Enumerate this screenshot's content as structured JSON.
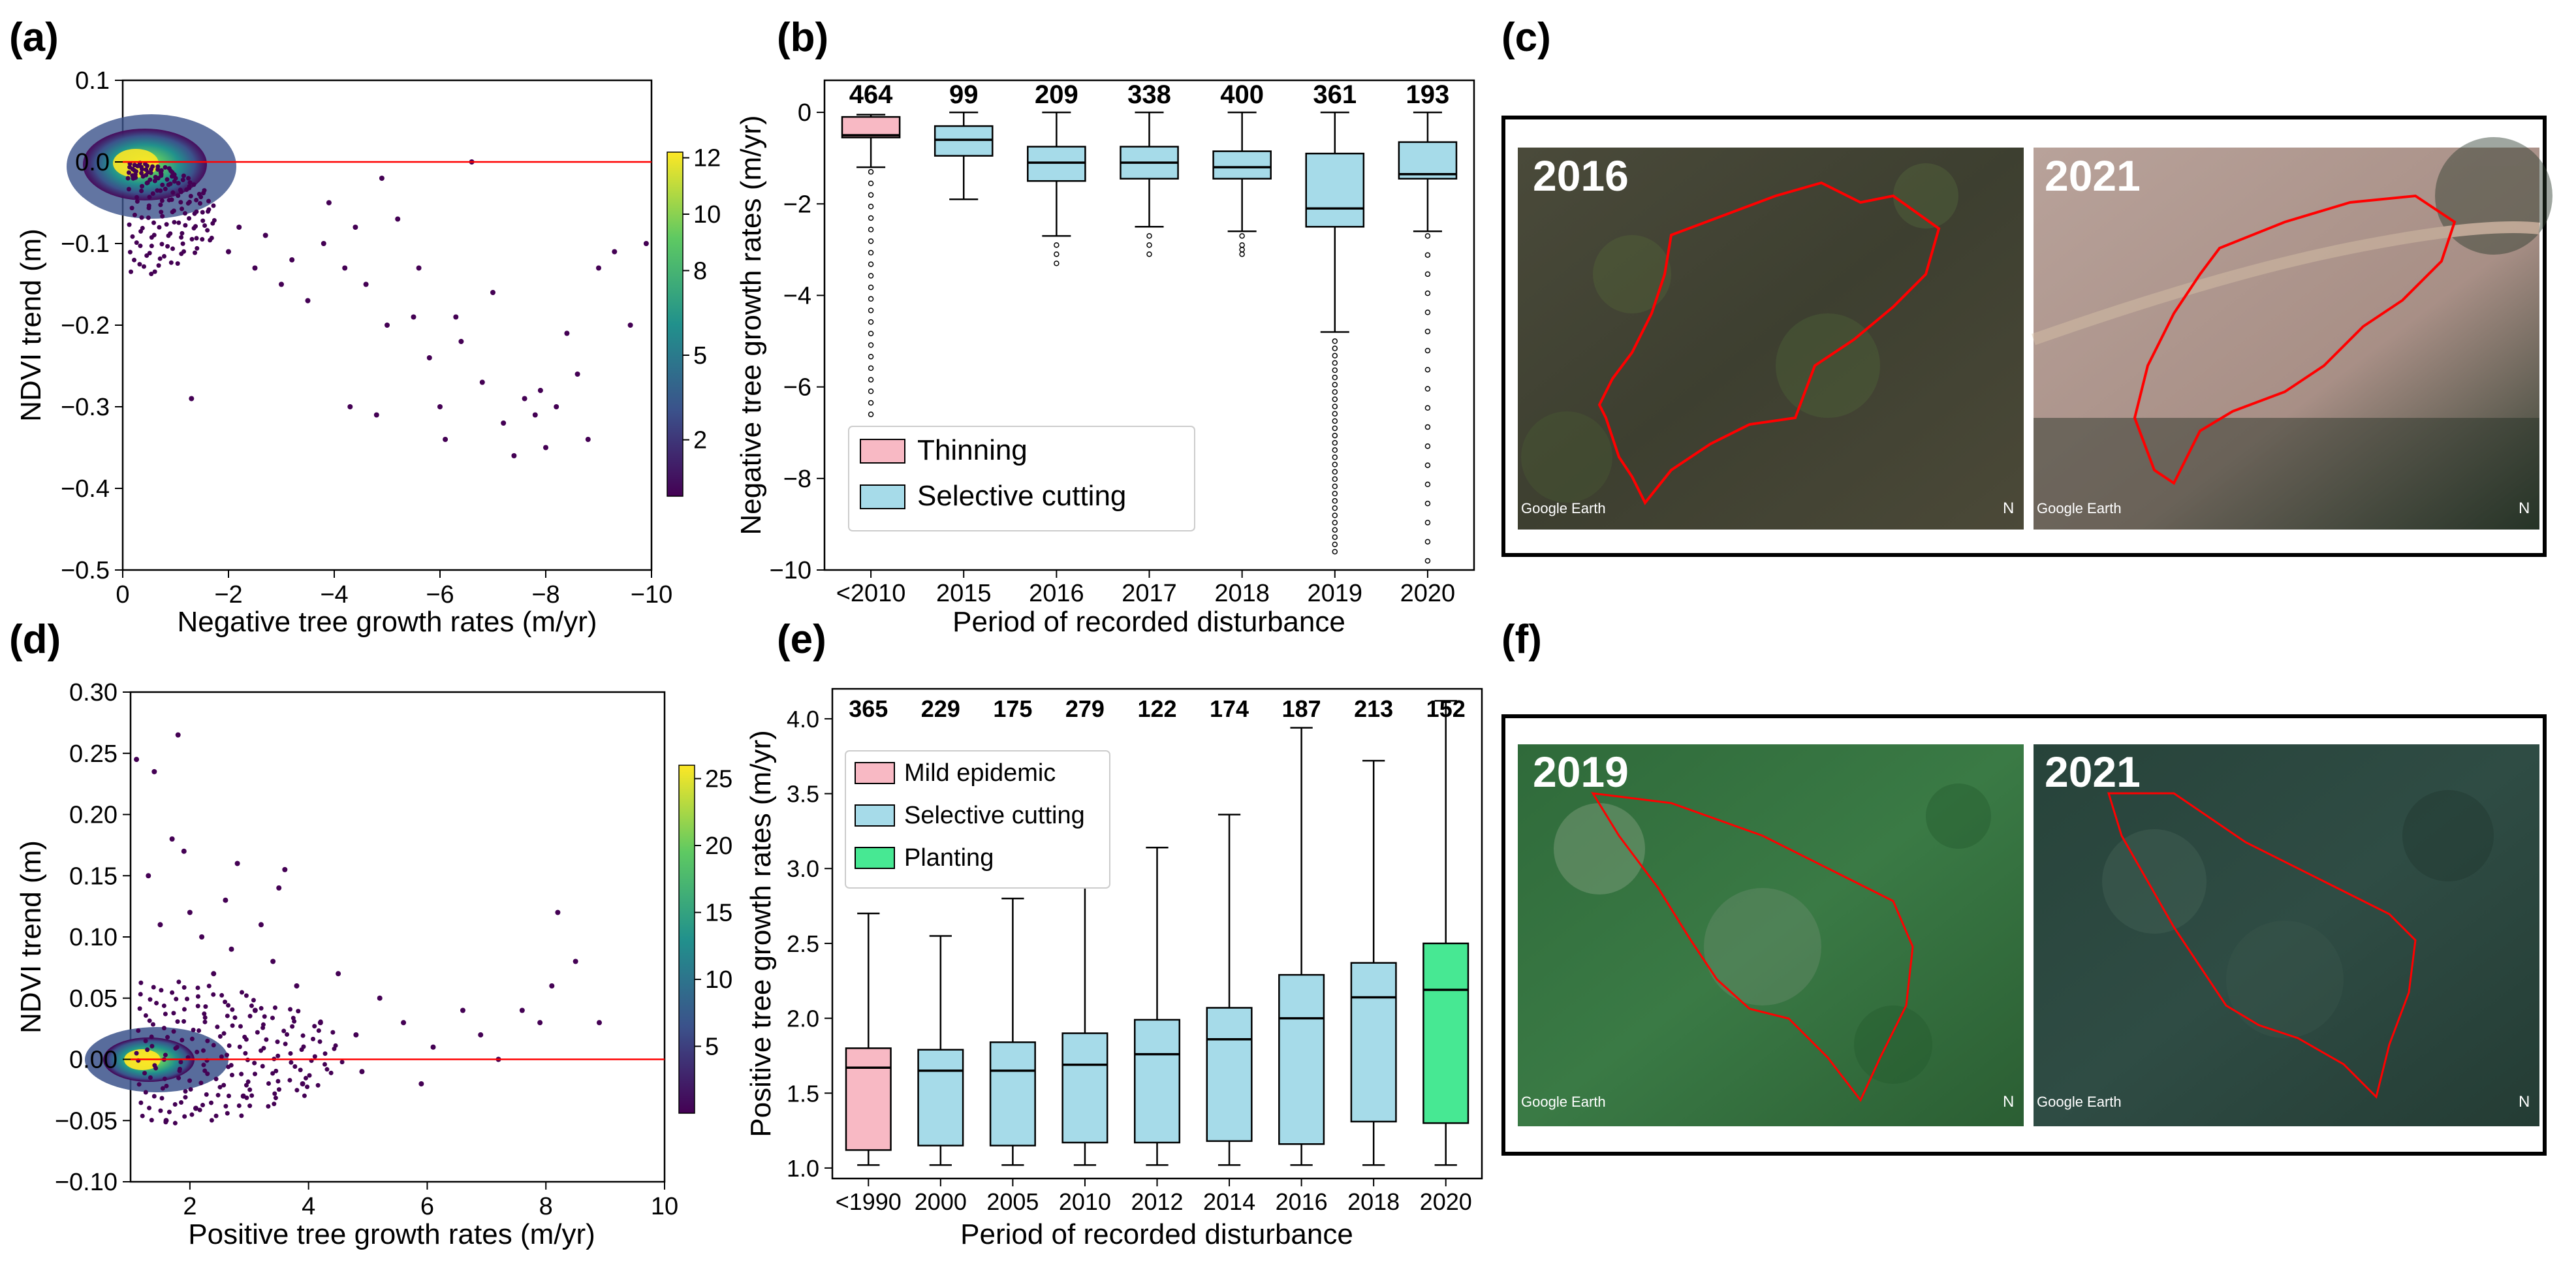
{
  "panel_labels": {
    "a": "(a)",
    "b": "(b)",
    "c": "(c)",
    "d": "(d)",
    "e": "(e)",
    "f": "(f)"
  },
  "colors": {
    "thinning": "#f8b9c4",
    "selective": "#a6dbe9",
    "planting": "#47e893",
    "mild": "#f8b9c4",
    "redline": "#ff0000",
    "viridis": [
      "#440154",
      "#3b528b",
      "#21918c",
      "#5ec962",
      "#fde725"
    ]
  },
  "chart_data": [
    {
      "id": "a",
      "type": "scatter",
      "xlabel": "Negative tree growth rates (m/yr)",
      "ylabel": "NDVI trend (m)",
      "xlim": [
        0,
        -10
      ],
      "ylim": [
        -0.5,
        0.1
      ],
      "xticks": [
        {
          "v": 0,
          "label": "0"
        },
        {
          "v": -2,
          "label": "−2"
        },
        {
          "v": -4,
          "label": "−4"
        },
        {
          "v": -6,
          "label": "−6"
        },
        {
          "v": -8,
          "label": "−8"
        },
        {
          "v": -10,
          "label": "−10"
        }
      ],
      "yticks": [
        {
          "v": 0.1,
          "label": "0.1"
        },
        {
          "v": 0.0,
          "label": "0.0"
        },
        {
          "v": -0.1,
          "label": "−0.1"
        },
        {
          "v": -0.2,
          "label": "−0.2"
        },
        {
          "v": -0.3,
          "label": "−0.3"
        },
        {
          "v": -0.4,
          "label": "−0.4"
        },
        {
          "v": -0.5,
          "label": "−0.5"
        }
      ],
      "hline": 0,
      "colorbar": {
        "min": 0,
        "max": 12.2,
        "ticks": [
          {
            "v": 2,
            "label": "2"
          },
          {
            "v": 5,
            "label": "5"
          },
          {
            "v": 8,
            "label": "8"
          },
          {
            "v": 10,
            "label": "10"
          },
          {
            "v": 12,
            "label": "12"
          }
        ]
      },
      "points": [
        [
          -4.2,
          -0.13
        ],
        [
          -4.6,
          -0.15
        ],
        [
          -5.0,
          -0.2
        ],
        [
          -5.5,
          -0.19
        ],
        [
          -5.8,
          -0.24
        ],
        [
          -6.0,
          -0.3
        ],
        [
          -6.1,
          -0.34
        ],
        [
          -6.4,
          -0.22
        ],
        [
          -6.8,
          -0.27
        ],
        [
          -7.0,
          -0.16
        ],
        [
          -7.2,
          -0.32
        ],
        [
          -7.4,
          -0.36
        ],
        [
          -7.6,
          -0.29
        ],
        [
          -7.8,
          -0.31
        ],
        [
          -8.0,
          -0.35
        ],
        [
          -8.2,
          -0.3
        ],
        [
          -8.4,
          -0.21
        ],
        [
          -8.6,
          -0.26
        ],
        [
          -8.8,
          -0.34
        ],
        [
          -9.0,
          -0.13
        ],
        [
          -9.3,
          -0.11
        ],
        [
          -9.6,
          -0.2
        ],
        [
          -9.9,
          -0.1
        ],
        [
          -4.3,
          -0.3
        ],
        [
          -4.8,
          -0.31
        ],
        [
          -5.2,
          -0.07
        ],
        [
          -3.8,
          -0.1
        ],
        [
          -3.5,
          -0.17
        ],
        [
          -3.2,
          -0.12
        ],
        [
          -3.0,
          -0.15
        ],
        [
          -2.7,
          -0.09
        ],
        [
          -2.5,
          -0.13
        ],
        [
          -2.2,
          -0.08
        ],
        [
          -2.0,
          -0.11
        ],
        [
          -1.3,
          -0.29
        ],
        [
          -3.9,
          -0.05
        ],
        [
          -4.4,
          -0.08
        ],
        [
          -4.9,
          -0.02
        ],
        [
          -6.6,
          0.0
        ],
        [
          -7.9,
          -0.28
        ],
        [
          -6.3,
          -0.19
        ],
        [
          -5.6,
          -0.13
        ]
      ]
    },
    {
      "id": "b",
      "type": "box",
      "categories": [
        "<2010",
        "2015",
        "2016",
        "2017",
        "2018",
        "2019",
        "2020"
      ],
      "counts": [
        "464",
        "99",
        "209",
        "338",
        "400",
        "361",
        "193"
      ],
      "xlabel": "Period of recorded disturbance",
      "ylabel": "Negative tree growth rates (m/yr)",
      "ylim": [
        -10,
        0.7
      ],
      "yticks": [
        {
          "v": 0,
          "label": "0"
        },
        {
          "v": -2,
          "label": "−2"
        },
        {
          "v": -4,
          "label": "−4"
        },
        {
          "v": -6,
          "label": "−6"
        },
        {
          "v": -8,
          "label": "−8"
        },
        {
          "v": -10,
          "label": "−10"
        }
      ],
      "series": [
        {
          "name": "Thinning",
          "whislo": -1.2,
          "q1": -0.55,
          "median": -0.5,
          "q3": -0.1,
          "whishi": -0.05
        },
        {
          "name": "Selective cutting",
          "whislo": -1.9,
          "q1": -0.95,
          "median": -0.6,
          "q3": -0.3,
          "whishi": 0
        },
        {
          "name": "Selective cutting",
          "whislo": -2.7,
          "q1": -1.5,
          "median": -1.1,
          "q3": -0.75,
          "whishi": 0
        },
        {
          "name": "Selective cutting",
          "whislo": -2.5,
          "q1": -1.45,
          "median": -1.1,
          "q3": -0.75,
          "whishi": 0
        },
        {
          "name": "Selective cutting",
          "whislo": -2.6,
          "q1": -1.45,
          "median": -1.2,
          "q3": -0.85,
          "whishi": 0
        },
        {
          "name": "Selective cutting",
          "whislo": -4.8,
          "q1": -2.5,
          "median": -2.1,
          "q3": -0.9,
          "whishi": 0
        },
        {
          "name": "Selective cutting",
          "whislo": -2.6,
          "q1": -1.45,
          "median": -1.35,
          "q3": -0.65,
          "whishi": 0
        }
      ],
      "legend": [
        "Thinning",
        "Selective cutting"
      ]
    },
    {
      "id": "d",
      "type": "scatter",
      "xlabel": "Positive tree growth rates (m/yr)",
      "ylabel": "NDVI trend (m)",
      "xlim": [
        1,
        10
      ],
      "ylim": [
        -0.1,
        0.3
      ],
      "xticks": [
        {
          "v": 2,
          "label": "2"
        },
        {
          "v": 4,
          "label": "4"
        },
        {
          "v": 6,
          "label": "6"
        },
        {
          "v": 8,
          "label": "8"
        },
        {
          "v": 10,
          "label": "10"
        }
      ],
      "yticks": [
        {
          "v": 0.3,
          "label": "0.30"
        },
        {
          "v": 0.25,
          "label": "0.25"
        },
        {
          "v": 0.2,
          "label": "0.20"
        },
        {
          "v": 0.15,
          "label": "0.15"
        },
        {
          "v": 0.1,
          "label": "0.10"
        },
        {
          "v": 0.05,
          "label": "0.05"
        },
        {
          "v": 0.0,
          "label": "0.00"
        },
        {
          "v": -0.05,
          "label": "−0.05"
        },
        {
          "v": -0.1,
          "label": "−0.10"
        }
      ],
      "hline": 0,
      "colorbar": {
        "min": 0,
        "max": 26,
        "ticks": [
          {
            "v": 5,
            "label": "5"
          },
          {
            "v": 10,
            "label": "10"
          },
          {
            "v": 15,
            "label": "15"
          },
          {
            "v": 20,
            "label": "20"
          },
          {
            "v": 25,
            "label": "25"
          }
        ]
      },
      "points": [
        [
          1.8,
          0.265
        ],
        [
          1.4,
          0.235
        ],
        [
          1.1,
          0.245
        ],
        [
          1.7,
          0.18
        ],
        [
          1.9,
          0.17
        ],
        [
          2.8,
          0.16
        ],
        [
          3.6,
          0.155
        ],
        [
          3.5,
          0.14
        ],
        [
          1.3,
          0.15
        ],
        [
          2.0,
          0.12
        ],
        [
          1.5,
          0.11
        ],
        [
          8.2,
          0.12
        ],
        [
          7.6,
          0.04
        ],
        [
          7.9,
          0.03
        ],
        [
          8.5,
          0.08
        ],
        [
          8.1,
          0.06
        ],
        [
          8.9,
          0.03
        ],
        [
          6.6,
          0.04
        ],
        [
          6.9,
          0.02
        ],
        [
          5.6,
          0.03
        ],
        [
          6.1,
          0.01
        ],
        [
          5.2,
          0.05
        ],
        [
          4.8,
          0.02
        ],
        [
          4.5,
          0.07
        ],
        [
          4.2,
          0.03
        ],
        [
          3.8,
          0.06
        ],
        [
          3.4,
          0.08
        ],
        [
          3.1,
          0.04
        ],
        [
          2.7,
          0.09
        ],
        [
          2.4,
          0.07
        ],
        [
          2.2,
          0.1
        ],
        [
          5.9,
          -0.02
        ],
        [
          4.9,
          -0.01
        ],
        [
          3.9,
          -0.02
        ],
        [
          2.9,
          -0.03
        ],
        [
          2.1,
          -0.04
        ],
        [
          1.6,
          -0.05
        ],
        [
          7.2,
          0.0
        ],
        [
          2.6,
          0.13
        ],
        [
          3.2,
          0.11
        ]
      ]
    },
    {
      "id": "e",
      "type": "box",
      "categories": [
        "<1990",
        "2000",
        "2005",
        "2010",
        "2012",
        "2014",
        "2016",
        "2018",
        "2020"
      ],
      "counts": [
        "365",
        "229",
        "175",
        "279",
        "122",
        "174",
        "187",
        "213",
        "152"
      ],
      "xlabel": "Period of recorded disturbance",
      "ylabel": "Positive tree growth rates (m/yr)",
      "ylim": [
        0.93,
        4.2
      ],
      "yticks": [
        {
          "v": 1.0,
          "label": "1.0"
        },
        {
          "v": 1.5,
          "label": "1.5"
        },
        {
          "v": 2.0,
          "label": "2.0"
        },
        {
          "v": 2.5,
          "label": "2.5"
        },
        {
          "v": 3.0,
          "label": "3.0"
        },
        {
          "v": 3.5,
          "label": "3.5"
        },
        {
          "v": 4.0,
          "label": "4.0"
        }
      ],
      "series": [
        {
          "name": "Mild epidemic",
          "whislo": 1.02,
          "q1": 1.12,
          "median": 1.67,
          "q3": 1.8,
          "whishi": 2.7
        },
        {
          "name": "Selective cutting",
          "whislo": 1.02,
          "q1": 1.15,
          "median": 1.65,
          "q3": 1.79,
          "whishi": 2.55
        },
        {
          "name": "Selective cutting",
          "whislo": 1.02,
          "q1": 1.15,
          "median": 1.65,
          "q3": 1.84,
          "whishi": 2.8
        },
        {
          "name": "Selective cutting",
          "whislo": 1.02,
          "q1": 1.17,
          "median": 1.69,
          "q3": 1.9,
          "whishi": 2.96
        },
        {
          "name": "Selective cutting",
          "whislo": 1.02,
          "q1": 1.17,
          "median": 1.76,
          "q3": 1.99,
          "whishi": 3.14
        },
        {
          "name": "Selective cutting",
          "whislo": 1.02,
          "q1": 1.18,
          "median": 1.86,
          "q3": 2.07,
          "whishi": 3.36
        },
        {
          "name": "Selective cutting",
          "whislo": 1.02,
          "q1": 1.16,
          "median": 2.0,
          "q3": 2.29,
          "whishi": 3.94
        },
        {
          "name": "Selective cutting",
          "whislo": 1.02,
          "q1": 1.31,
          "median": 2.14,
          "q3": 2.37,
          "whishi": 3.72
        },
        {
          "name": "Planting",
          "whislo": 1.02,
          "q1": 1.3,
          "median": 2.19,
          "q3": 2.5,
          "whishi": 4.12
        }
      ],
      "legend": [
        "Mild epidemic",
        "Selective cutting",
        "Planting"
      ]
    }
  ],
  "imagery": {
    "c": {
      "left_year": "2016",
      "right_year": "2021",
      "watermark": "Google Earth",
      "north": "N"
    },
    "f": {
      "left_year": "2019",
      "right_year": "2021",
      "watermark": "Google Earth",
      "north": "N"
    }
  }
}
